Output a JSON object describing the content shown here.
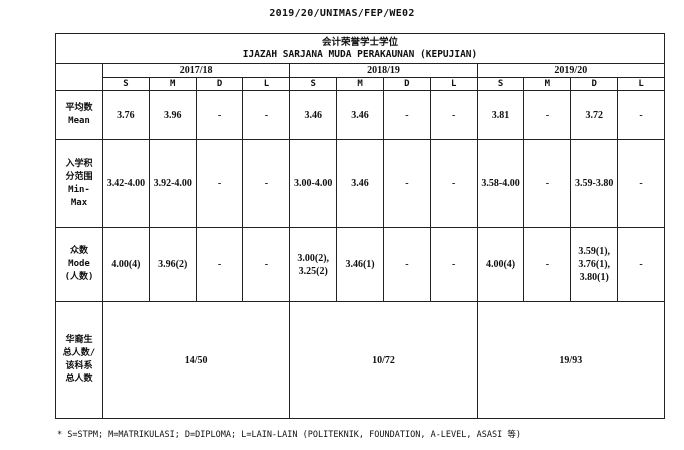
{
  "doc_code": "2019/20/UNIMAS/FEP/WE02",
  "title_cn": "会计荣誉学士学位",
  "title_my": "IJAZAH SARJANA MUDA PERAKAUNAN (KEPUJIAN)",
  "years": [
    "2017/18",
    "2018/19",
    "2019/20"
  ],
  "sub_cols": [
    "S",
    "M",
    "D",
    "L"
  ],
  "rows": [
    {
      "label": "平均数\nMean",
      "values": [
        "3.76",
        "3.96",
        "-",
        "-",
        "3.46",
        "3.46",
        "-",
        "-",
        "3.81",
        "-",
        "3.72",
        "-"
      ]
    },
    {
      "label": "入学积\n分范围\nMin-\nMax",
      "values": [
        "3.42-4.00",
        "3.92-4.00",
        "-",
        "-",
        "3.00-4.00",
        "3.46",
        "-",
        "-",
        "3.58-4.00",
        "-",
        "3.59-3.80",
        "-"
      ]
    },
    {
      "label": "众数\nMode\n(人数)",
      "values": [
        "4.00(4)",
        "3.96(2)",
        "-",
        "-",
        "3.00(2),\n3.25(2)",
        "3.46(1)",
        "-",
        "-",
        "4.00(4)",
        "-",
        "3.59(1),\n3.76(1),\n3.80(1)",
        "-"
      ]
    }
  ],
  "total_row": {
    "label": "华裔生\n总人数/\n该科系\n总人数",
    "values": [
      "14/50",
      "10/72",
      "19/93"
    ]
  },
  "footnote": "* S=STPM; M=MATRIKULASI; D=DIPLOMA; L=LAIN-LAIN (POLITEKNIK, FOUNDATION, A-LEVEL, ASASI 等)"
}
